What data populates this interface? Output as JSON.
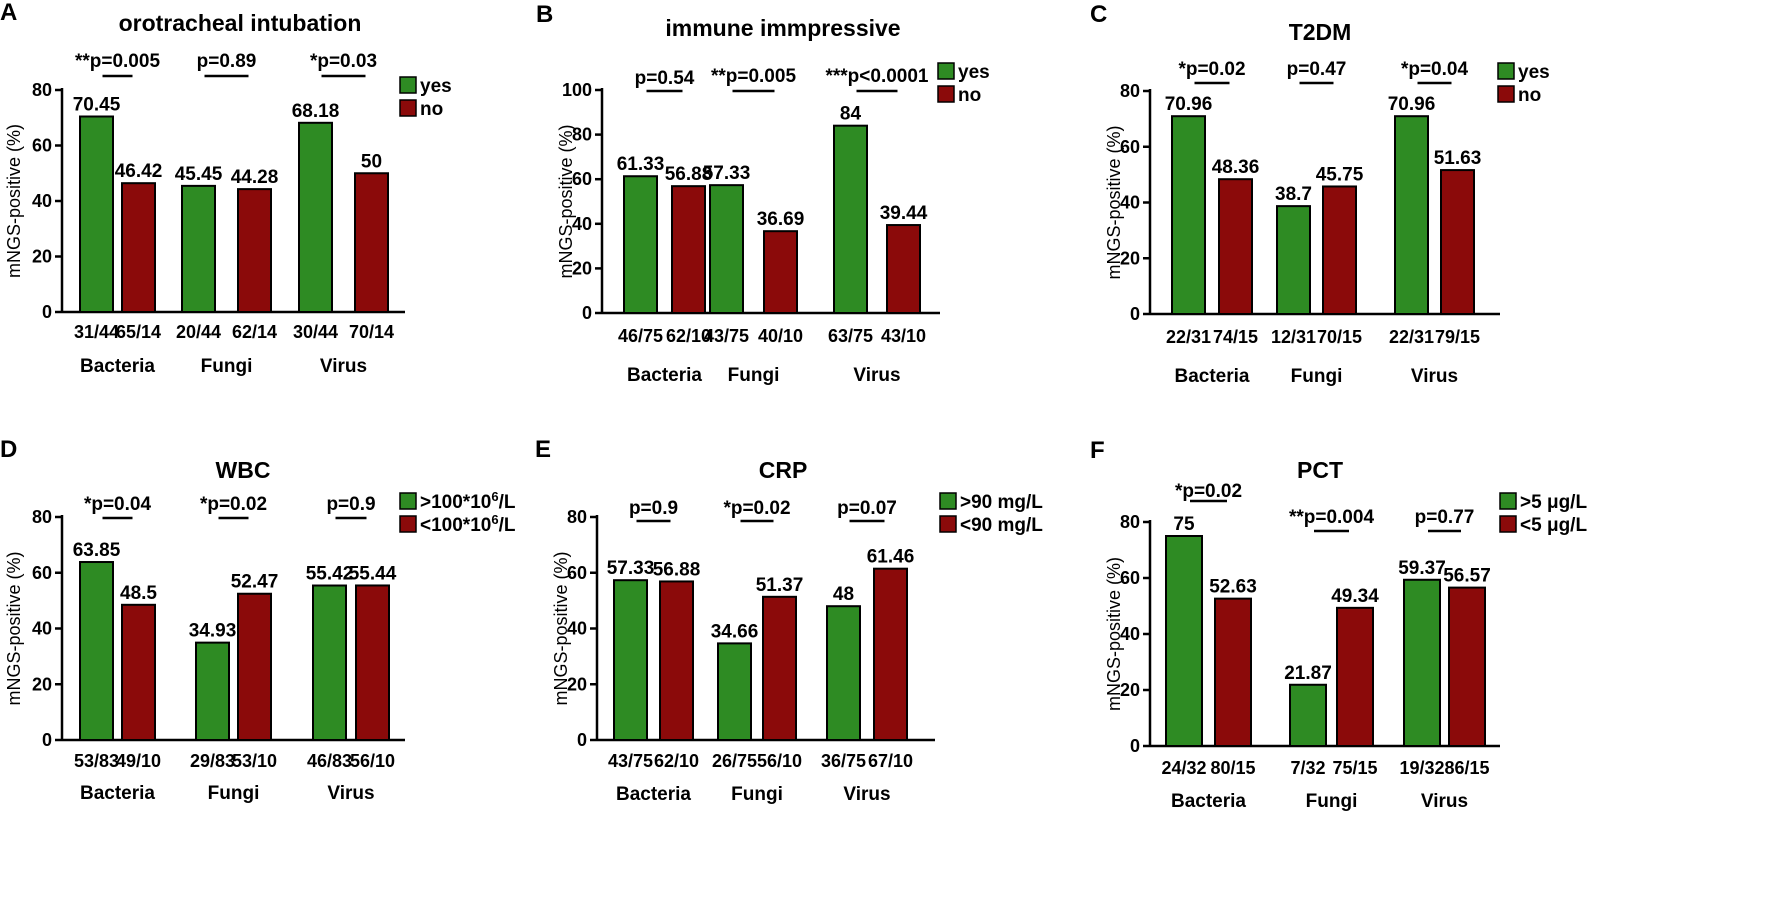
{
  "figure": {
    "colors": {
      "series1": "#2e8b23",
      "series2": "#8b0a0a",
      "axis": "#000000"
    }
  },
  "chart_data": [
    {
      "panel": "A",
      "type": "bar",
      "title": "orotracheal intubation",
      "ylabel": "mNGS-positive (%)",
      "ylim": [
        0,
        80
      ],
      "yticks": [
        0,
        20,
        40,
        60,
        80
      ],
      "categories": [
        "Bacteria",
        "Fungi",
        "Virus"
      ],
      "series": [
        {
          "name": "yes",
          "values": [
            70.45,
            45.45,
            68.18
          ],
          "labels": [
            "70.45",
            "45.45",
            "68.18"
          ],
          "counts": [
            "31/44",
            "20/44",
            "30/44"
          ]
        },
        {
          "name": "no",
          "values": [
            46.42,
            44.28,
            50
          ],
          "labels": [
            "46.42",
            "44.28",
            "50"
          ],
          "counts": [
            "65/14",
            "62/14",
            "70/14"
          ]
        }
      ],
      "pvalues": [
        "**p=0.005",
        "p=0.89",
        "*p=0.03"
      ],
      "legend_position": "top-right"
    },
    {
      "panel": "B",
      "type": "bar",
      "title": "immune immpressive",
      "ylabel": "mNGS-positive (%)",
      "ylim": [
        0,
        100
      ],
      "yticks": [
        0,
        20,
        40,
        60,
        80,
        100
      ],
      "categories": [
        "Bacteria",
        "Fungi",
        "Virus"
      ],
      "series": [
        {
          "name": "yes",
          "values": [
            61.33,
            57.33,
            84
          ],
          "labels": [
            "61.33",
            "57.33",
            "84"
          ],
          "counts": [
            "46/75",
            "43/75",
            "63/75"
          ]
        },
        {
          "name": "no",
          "values": [
            56.88,
            36.69,
            39.44
          ],
          "labels": [
            "56.88",
            "36.69",
            "39.44"
          ],
          "counts": [
            "62/10",
            "40/10",
            "43/10"
          ]
        }
      ],
      "pvalues": [
        "p=0.54",
        "**p=0.005",
        "***p<0.0001"
      ],
      "legend_position": "top-right"
    },
    {
      "panel": "C",
      "type": "bar",
      "title": "T2DM",
      "ylabel": "mNGS-positive (%)",
      "ylim": [
        0,
        80
      ],
      "yticks": [
        0,
        20,
        40,
        60,
        80
      ],
      "categories": [
        "Bacteria",
        "Fungi",
        "Virus"
      ],
      "series": [
        {
          "name": "yes",
          "values": [
            70.96,
            38.7,
            70.96
          ],
          "labels": [
            "70.96",
            "38.7",
            "70.96"
          ],
          "counts": [
            "22/31",
            "12/31",
            "22/31"
          ]
        },
        {
          "name": "no",
          "values": [
            48.36,
            45.75,
            51.63
          ],
          "labels": [
            "48.36",
            "45.75",
            "51.63"
          ],
          "counts": [
            "74/15",
            "70/15",
            "79/15"
          ]
        }
      ],
      "pvalues": [
        "*p=0.02",
        "p=0.47",
        "*p=0.04"
      ],
      "legend_position": "top-right"
    },
    {
      "panel": "D",
      "type": "bar",
      "title": "WBC",
      "ylabel": "mNGS-positive (%)",
      "ylim": [
        0,
        80
      ],
      "yticks": [
        0,
        20,
        40,
        60,
        80
      ],
      "categories": [
        "Bacteria",
        "Fungi",
        "Virus"
      ],
      "series": [
        {
          "name": ">100*10",
          "name_sup": "6",
          "name_suffix": "/L",
          "values": [
            63.85,
            34.93,
            55.42
          ],
          "labels": [
            "63.85",
            "34.93",
            "55.42"
          ],
          "counts": [
            "53/83",
            "29/83",
            "46/83"
          ]
        },
        {
          "name": "<100*10",
          "name_sup": "6",
          "name_suffix": "/L",
          "values": [
            48.5,
            52.47,
            55.44
          ],
          "labels": [
            "48.5",
            "52.47",
            "55.44"
          ],
          "counts": [
            "49/10",
            "53/10",
            "56/10"
          ]
        }
      ],
      "pvalues": [
        "*p=0.04",
        "*p=0.02",
        "p=0.9"
      ],
      "legend_position": "top-right"
    },
    {
      "panel": "E",
      "type": "bar",
      "title": "CRP",
      "ylabel": "mNGS-positive (%)",
      "ylim": [
        0,
        80
      ],
      "yticks": [
        0,
        20,
        40,
        60,
        80
      ],
      "categories": [
        "Bacteria",
        "Fungi",
        "Virus"
      ],
      "series": [
        {
          "name": ">90 mg/L",
          "values": [
            57.33,
            34.66,
            48
          ],
          "labels": [
            "57.33",
            "34.66",
            "48"
          ],
          "counts": [
            "43/75",
            "26/75",
            "36/75"
          ]
        },
        {
          "name": "<90 mg/L",
          "values": [
            56.88,
            51.37,
            61.46
          ],
          "labels": [
            "56.88",
            "51.37",
            "61.46"
          ],
          "counts": [
            "62/10",
            "56/10",
            "67/10"
          ]
        }
      ],
      "pvalues": [
        "p=0.9",
        "*p=0.02",
        "p=0.07"
      ],
      "legend_position": "top-right"
    },
    {
      "panel": "F",
      "type": "bar",
      "title": "PCT",
      "ylabel": "mNGS-positive (%)",
      "ylim": [
        0,
        80
      ],
      "yticks": [
        0,
        20,
        40,
        60,
        80
      ],
      "categories": [
        "Bacteria",
        "Fungi",
        "Virus"
      ],
      "series": [
        {
          "name": ">5 μg/L",
          "values": [
            75,
            21.87,
            59.37
          ],
          "labels": [
            "75",
            "21.87",
            "59.37"
          ],
          "counts": [
            "24/32",
            "7/32",
            "19/32"
          ]
        },
        {
          "name": "<5 μg/L",
          "values": [
            52.63,
            49.34,
            56.57
          ],
          "labels": [
            "52.63",
            "49.34",
            "56.57"
          ],
          "counts": [
            "80/15",
            "75/15",
            "86/15"
          ]
        }
      ],
      "pvalues": [
        "*p=0.02",
        "**p=0.004",
        "p=0.77"
      ],
      "legend_position": "top-right"
    }
  ]
}
